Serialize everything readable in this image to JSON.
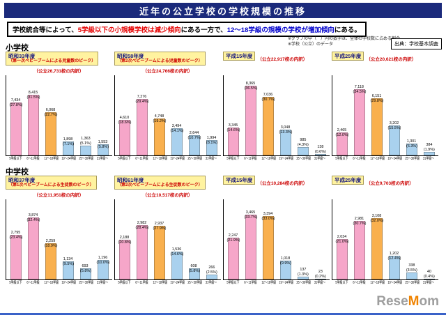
{
  "header": {
    "title": "近年の公立学校の学校規模の推移"
  },
  "lead": {
    "segments": [
      {
        "text": "学校統合等によって、",
        "color": "#000000"
      },
      {
        "text": "5学級以下の小規模学校は減少傾向",
        "color": "#e60000"
      },
      {
        "text": "にある一方で、",
        "color": "#000000"
      },
      {
        "text": "12〜18学級の規模の学校が増加傾向",
        "color": "#0000cc"
      },
      {
        "text": "にある。",
        "color": "#000000"
      }
    ]
  },
  "notes": {
    "note1": "※グラフの中（　）内の数字は、全体の学校数に占める割合",
    "note2": "※学校（公立）のデータ",
    "source": "出典：学校基本調査"
  },
  "sections": [
    {
      "label": "小学校"
    },
    {
      "label": "中学校"
    }
  ],
  "watermark": {
    "text_before": "Rese",
    "text_accent": "M",
    "text_after": "om"
  },
  "colors": {
    "header_bg": "#1b2a7b",
    "title_box_bg": "#fff3a0",
    "count_text": "#cc0000",
    "bar_small": "#f6a6c9",
    "bar_mid": "#f9b04e",
    "bar_large": "#a9d1ee",
    "watermark_gray": "#9e9e9e",
    "watermark_accent": "#f08300"
  },
  "categories": [
    "5学級以下",
    "6〜11学級",
    "12〜18学級",
    "19〜24学級",
    "25〜30学級",
    "31学級〜"
  ],
  "chart_data": [
    {
      "type": "bar",
      "section": "小学校",
      "year": "昭和33年度",
      "subtitle": "（第一次ベビーブームによる児童数のピーク）",
      "total_label": "（公立26,731校の内訳）",
      "total": 26731,
      "values": [
        7434,
        8415,
        6068,
        1898,
        1363,
        1553
      ],
      "percents": [
        27.8,
        31.5,
        22.7,
        7.1,
        5.1,
        5.8
      ],
      "ylim": [
        0,
        40
      ],
      "grid": false,
      "legend": "none"
    },
    {
      "type": "bar",
      "section": "小学校",
      "year": "昭和58年度",
      "subtitle": "（第2次ベビーブームによる児童数のピーク）",
      "total_label": "（公立24,766校の内訳）",
      "total": 24766,
      "values": [
        4610,
        7276,
        4748,
        3494,
        2644,
        1994
      ],
      "percents": [
        18.6,
        29.4,
        19.2,
        14.1,
        10.7,
        8.1
      ],
      "ylim": [
        0,
        40
      ],
      "grid": false,
      "legend": "none"
    },
    {
      "type": "bar",
      "section": "小学校",
      "year": "平成15年度",
      "subtitle": "",
      "total_label": "（公立22,917校の内訳）",
      "total": 22917,
      "values": [
        3345,
        8365,
        7036,
        3048,
        985,
        138
      ],
      "percents": [
        14.6,
        36.5,
        30.7,
        13.3,
        4.3,
        0.6
      ],
      "ylim": [
        0,
        40
      ],
      "grid": false,
      "legend": "none"
    },
    {
      "type": "bar",
      "section": "小学校",
      "year": "平成25年度",
      "subtitle": "",
      "total_label": "（公立20,621校の内訳）",
      "total": 20621,
      "values": [
        2465,
        7118,
        6151,
        3202,
        1301,
        384
      ],
      "percents": [
        12.0,
        34.5,
        29.8,
        15.5,
        6.3,
        1.9
      ],
      "ylim": [
        0,
        40
      ],
      "grid": false,
      "legend": "none"
    },
    {
      "type": "bar",
      "section": "中学校",
      "year": "昭和37年度",
      "subtitle": "（第1次ベビーブームによる生徒数のピーク）",
      "total_label": "（公立11,951校の内訳）",
      "total": 11951,
      "values": [
        2795,
        3874,
        2259,
        1134,
        693,
        1196
      ],
      "percents": [
        23.4,
        32.4,
        18.9,
        9.5,
        5.8,
        10.0
      ],
      "ylim": [
        0,
        40
      ],
      "grid": false,
      "legend": "none"
    },
    {
      "type": "bar",
      "section": "中学校",
      "year": "昭和61年度",
      "subtitle": "（第2次ベビーブームによる生徒数のピーク）",
      "total_label": "（公立10,517校の内訳）",
      "total": 10517,
      "values": [
        2188,
        2982,
        2937,
        1536,
        608,
        266
      ],
      "percents": [
        20.8,
        28.4,
        27.9,
        14.6,
        5.8,
        2.5
      ],
      "ylim": [
        0,
        40
      ],
      "grid": false,
      "legend": "none"
    },
    {
      "type": "bar",
      "section": "中学校",
      "year": "平成15年度",
      "subtitle": "",
      "total_label": "（公立10,284校の内訳）",
      "total": 10284,
      "values": [
        2247,
        3465,
        3394,
        1018,
        137,
        23
      ],
      "percents": [
        21.9,
        33.7,
        33.0,
        9.9,
        1.3,
        0.2
      ],
      "ylim": [
        0,
        40
      ],
      "grid": false,
      "legend": "none"
    },
    {
      "type": "bar",
      "section": "中学校",
      "year": "平成25年度",
      "subtitle": "",
      "total_label": "（公立9,703校の内訳）",
      "total": 9703,
      "values": [
        2034,
        2981,
        3108,
        1202,
        338,
        40
      ],
      "percents": [
        21.0,
        30.7,
        32.0,
        12.4,
        3.5,
        0.4
      ],
      "ylim": [
        0,
        40
      ],
      "grid": false,
      "legend": "none"
    }
  ]
}
